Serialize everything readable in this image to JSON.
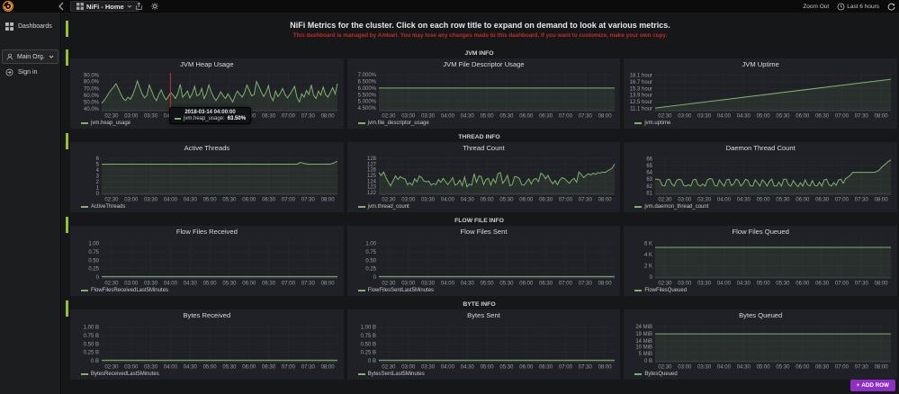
{
  "navbar": {
    "title": "NiFi - Home",
    "zoom_out": "Zoom Out",
    "time_range": "Last 6 hours"
  },
  "sidebar": {
    "dashboards": "Dashboards",
    "org": "Main Org.",
    "sign_in": "Sign in"
  },
  "header": {
    "title": "NiFi Metrics for the cluster. Click on each row title to expand on demand to look at various metrics.",
    "warning": "This dashboard is managed by Ambari. You may lose any changes made to this dashboard. If you want to customize, make your own copy."
  },
  "row_titles": [
    "JVM INFO",
    "THREAD INFO",
    "FLOW FILE INFO",
    "BYTE INFO"
  ],
  "tooltip": {
    "time": "2018-03-14 04:00:00",
    "series_label": "jvm.heap_usage:",
    "value": "63.50%"
  },
  "add_row": {
    "plus": "+",
    "label": "ADD ROW"
  },
  "colors": {
    "series_green": "#7eb26d",
    "accent_lime": "#9abf2e",
    "add_row_purple": "#8e2ec4",
    "crosshair_red": "#c9302c"
  },
  "time_ticks": [
    "02:30",
    "03:00",
    "03:30",
    "04:00",
    "04:30",
    "05:00",
    "05:30",
    "06:00",
    "06:30",
    "07:00",
    "07:30",
    "08:00"
  ],
  "chart_data": [
    {
      "id": "jvm_heap_usage",
      "panel_title": "JVM Heap Usage",
      "type": "line",
      "legend": "jvm.heap_usage",
      "ylim": [
        37,
        93
      ],
      "crosshair": 0.2917,
      "yticks": [
        {
          "v": 40,
          "label": "40.0%"
        },
        {
          "v": 50,
          "label": "50.0%"
        },
        {
          "v": 60,
          "label": "60.0%"
        },
        {
          "v": 70,
          "label": "70.0%"
        },
        {
          "v": 80,
          "label": "80.0%"
        },
        {
          "v": 90,
          "label": "90.0%"
        }
      ],
      "values": [
        48,
        52,
        57,
        63,
        68,
        72,
        77,
        70,
        62,
        55,
        52,
        57,
        54,
        60,
        70,
        81,
        71,
        62,
        56,
        60,
        75,
        66,
        57,
        52,
        61,
        68,
        59,
        53,
        58,
        64,
        60,
        55,
        63,
        76,
        57,
        61,
        66,
        56,
        62,
        73,
        59,
        61,
        70,
        55,
        62,
        75,
        65,
        57,
        52,
        58,
        65,
        59,
        55,
        62,
        56,
        50,
        59,
        66,
        61,
        57,
        64,
        75,
        67,
        59,
        61,
        80,
        73,
        65,
        58,
        64,
        74,
        58,
        52,
        66,
        58,
        63,
        70,
        61,
        56,
        61,
        67,
        73,
        57,
        50,
        62,
        57,
        67,
        61,
        75,
        60,
        55,
        66,
        60,
        72,
        61,
        57,
        64,
        71,
        62,
        77
      ]
    },
    {
      "id": "jvm_file_descriptor_usage",
      "panel_title": "JVM File Descriptor Usage",
      "type": "line",
      "legend": "jvm.file_descriptor_usage",
      "ylim": [
        4.3,
        7.15
      ],
      "yticks": [
        {
          "v": 4.5,
          "label": "4.500%"
        },
        {
          "v": 5.0,
          "label": "5.000%"
        },
        {
          "v": 5.5,
          "label": "5.500%"
        },
        {
          "v": 6.0,
          "label": "6.000%"
        },
        {
          "v": 6.5,
          "label": "6.500%"
        },
        {
          "v": 7.0,
          "label": "7.000%"
        }
      ],
      "values": [
        6.0,
        6.0
      ]
    },
    {
      "id": "jvm_uptime",
      "panel_title": "JVM Uptime",
      "type": "line",
      "legend": "jvm.uptime",
      "ylim": [
        10.6,
        18.6
      ],
      "yticks": [
        {
          "v": 11.1,
          "label": "11.1 hour"
        },
        {
          "v": 12.5,
          "label": "12.5 hour"
        },
        {
          "v": 13.9,
          "label": "13.9 hour"
        },
        {
          "v": 15.3,
          "label": "15.3 hour"
        },
        {
          "v": 16.7,
          "label": "16.7 hour"
        },
        {
          "v": 18.1,
          "label": "18.1 hour"
        }
      ],
      "values": [
        11.15,
        17.25
      ]
    },
    {
      "id": "active_threads",
      "panel_title": "Active Threads",
      "type": "line",
      "legend": "ActiveThreads",
      "ylim": [
        -0.15,
        6.3
      ],
      "yticks": [
        {
          "v": 0,
          "label": "0"
        },
        {
          "v": 1,
          "label": "1"
        },
        {
          "v": 2,
          "label": "2"
        },
        {
          "v": 3,
          "label": "3"
        },
        {
          "v": 4,
          "label": "4"
        },
        {
          "v": 5,
          "label": "5"
        },
        {
          "v": 6,
          "label": "6"
        }
      ],
      "values": [
        5,
        5,
        5,
        5,
        5,
        5,
        5,
        5,
        5,
        5,
        5,
        5,
        5,
        5,
        5,
        5,
        5,
        5,
        5,
        5,
        5,
        5,
        5,
        5,
        5,
        5,
        5,
        5,
        5,
        5,
        5,
        5,
        5,
        5,
        5,
        5,
        5,
        5,
        5,
        5,
        5,
        5,
        5,
        5,
        5,
        5,
        5,
        5,
        5,
        5,
        5,
        5,
        5,
        5,
        5.3,
        5.1,
        5,
        5,
        5,
        5,
        5,
        5,
        5,
        5.2,
        5.5
      ]
    },
    {
      "id": "jvm_thread_count",
      "panel_title": "Thread Count",
      "type": "line",
      "legend": "jvm.thread_count",
      "ylim": [
        121.7,
        128.3
      ],
      "yticks": [
        {
          "v": 122,
          "label": "122"
        },
        {
          "v": 123,
          "label": "123"
        },
        {
          "v": 124,
          "label": "124"
        },
        {
          "v": 125,
          "label": "125"
        },
        {
          "v": 126,
          "label": "126"
        },
        {
          "v": 127,
          "label": "127"
        },
        {
          "v": 128,
          "label": "128"
        }
      ],
      "values": [
        125.5,
        125.0,
        125.6,
        124.6,
        123.8,
        123.2,
        124.1,
        124.9,
        124.3,
        124.8,
        124.5,
        124.4,
        123.4,
        123.7,
        123.3,
        124.4,
        123.9,
        124.9,
        124.6,
        124.0,
        123.9,
        124.0,
        123.3,
        123.6,
        123.4,
        124.3,
        123.8,
        124.5,
        123.9,
        123.4,
        124.0,
        124.6,
        123.3,
        123.5,
        124.2,
        123.2,
        124.7,
        123.0,
        123.5,
        123.3,
        125.3,
        123.8,
        124.9,
        124.8,
        123.4,
        124.3,
        124.5,
        123.3,
        124.4,
        123.7,
        125.3,
        125.5,
        123.6,
        124.2,
        125.0,
        123.2,
        123.4,
        124.8,
        124.7,
        124.5,
        123.4,
        123.3,
        123.9,
        124.4,
        123.5,
        124.3,
        124.5,
        123.9,
        125.4,
        125.1,
        124.4,
        125.0,
        124.2,
        123.5,
        124.1,
        123.4,
        124.2,
        124.6,
        124.4,
        124.0,
        123.6,
        124.2,
        124.5,
        123.8,
        125.6,
        125.2,
        124.6,
        125.0,
        125.3,
        125.1,
        125.4,
        125.2,
        125.5,
        125.4,
        125.6,
        125.5,
        125.8,
        126.0,
        126.3,
        127.0
      ]
    },
    {
      "id": "jvm_daemon_thread_count",
      "panel_title": "Daemon Thread Count",
      "type": "line",
      "legend": "jvm.daemon_thread_count",
      "ylim": [
        60.8,
        66.3
      ],
      "yticks": [
        {
          "v": 61,
          "label": "61"
        },
        {
          "v": 62,
          "label": "62"
        },
        {
          "v": 63,
          "label": "63"
        },
        {
          "v": 64,
          "label": "64"
        },
        {
          "v": 65,
          "label": "65"
        },
        {
          "v": 66,
          "label": "66"
        }
      ],
      "values": [
        63.0,
        63.0,
        62.9,
        62.1,
        62.0,
        62.9,
        63.0,
        62.3,
        62.0,
        62.8,
        63.0,
        62.9,
        62.1,
        62.0,
        62.2,
        62.0,
        62.9,
        63.0,
        62.2,
        62.0,
        62.3,
        62.0,
        62.9,
        63.1,
        63.0,
        62.1,
        62.0,
        62.9,
        62.4,
        62.0,
        62.9,
        63.0,
        62.1,
        62.3,
        63.0,
        62.8,
        62.0,
        62.4,
        63.0,
        62.8,
        62.0,
        62.0,
        62.9,
        62.5,
        62.0,
        62.9,
        62.6,
        62.0,
        62.7,
        63.0,
        62.0,
        62.0,
        62.6,
        62.0,
        63.0,
        63.0,
        62.2,
        62.0,
        62.8,
        62.3,
        61.9,
        62.5,
        62.0,
        62.9,
        62.2,
        62.0,
        62.8,
        62.1,
        62.0,
        62.6,
        62.0,
        62.9,
        63.0,
        62.2,
        62.0,
        62.5,
        62.1,
        62.9,
        63.0,
        62.4,
        63.1,
        63.3,
        63.6,
        64.0,
        64.0,
        64.0,
        64.0,
        64.0,
        64.0,
        64.0,
        64.0,
        64.0,
        64.0,
        64.1,
        64.3,
        64.7,
        65.0,
        65.3,
        65.6,
        65.8
      ]
    },
    {
      "id": "flow_files_received",
      "panel_title": "Flow Files Received",
      "type": "line",
      "legend": "FlowFilesReceivedLast5Minutes",
      "ylim": [
        -0.03,
        1.1
      ],
      "yticks": [
        {
          "v": 0,
          "label": "0"
        },
        {
          "v": 0.25,
          "label": "0.25"
        },
        {
          "v": 0.5,
          "label": "0.50"
        },
        {
          "v": 0.75,
          "label": "0.75"
        },
        {
          "v": 1.0,
          "label": "1.00"
        }
      ],
      "values": [
        0.012,
        0.012
      ]
    },
    {
      "id": "flow_files_sent",
      "panel_title": "Flow Files Sent",
      "type": "line",
      "legend": "FlowFilesSentLast5Minutes",
      "ylim": [
        -0.03,
        1.1
      ],
      "yticks": [
        {
          "v": 0,
          "label": "0"
        },
        {
          "v": 0.25,
          "label": "0.25"
        },
        {
          "v": 0.5,
          "label": "0.50"
        },
        {
          "v": 0.75,
          "label": "0.75"
        },
        {
          "v": 1.0,
          "label": "1.00"
        }
      ],
      "values": [
        0.012,
        0.012
      ]
    },
    {
      "id": "flow_files_queued",
      "panel_title": "Flow Files Queued",
      "type": "line",
      "legend": "FlowFilesQueued",
      "ylim": [
        -150,
        6600
      ],
      "yticks": [
        {
          "v": 0,
          "label": "0"
        },
        {
          "v": 2000,
          "label": "2 K"
        },
        {
          "v": 4000,
          "label": "4 K"
        },
        {
          "v": 6000,
          "label": "6 K"
        }
      ],
      "values": [
        5320,
        5320
      ]
    },
    {
      "id": "bytes_received",
      "panel_title": "Bytes Received",
      "type": "line",
      "legend": "BytesReceivedLast5Minutes",
      "ylim": [
        -0.03,
        1.1
      ],
      "yticks": [
        {
          "v": 0,
          "label": "0 B"
        },
        {
          "v": 0.25,
          "label": "0.25 B"
        },
        {
          "v": 0.5,
          "label": "0.50 B"
        },
        {
          "v": 0.75,
          "label": "0.75 B"
        },
        {
          "v": 1.0,
          "label": "1.00 B"
        }
      ],
      "values": [
        0.012,
        0.012
      ]
    },
    {
      "id": "bytes_sent",
      "panel_title": "Bytes Sent",
      "type": "line",
      "legend": "BytesSentLast5Minutes",
      "ylim": [
        -0.03,
        1.1
      ],
      "yticks": [
        {
          "v": 0,
          "label": "0 B"
        },
        {
          "v": 0.25,
          "label": "0.25 B"
        },
        {
          "v": 0.5,
          "label": "0.50 B"
        },
        {
          "v": 0.75,
          "label": "0.75 B"
        },
        {
          "v": 1.0,
          "label": "1.00 B"
        }
      ],
      "values": [
        0.012,
        0.012
      ]
    },
    {
      "id": "bytes_queued",
      "panel_title": "Bytes Queued",
      "type": "line",
      "legend": "BytesQueued",
      "ylim": [
        -0.6,
        26
      ],
      "yticks": [
        {
          "v": 0,
          "label": "0 B"
        },
        {
          "v": 5,
          "label": "5 MiB"
        },
        {
          "v": 10,
          "label": "10 MiB"
        },
        {
          "v": 14,
          "label": "14 MiB"
        },
        {
          "v": 19,
          "label": "19 MiB"
        },
        {
          "v": 24,
          "label": "24 MiB"
        }
      ],
      "values": [
        19,
        19
      ]
    }
  ]
}
